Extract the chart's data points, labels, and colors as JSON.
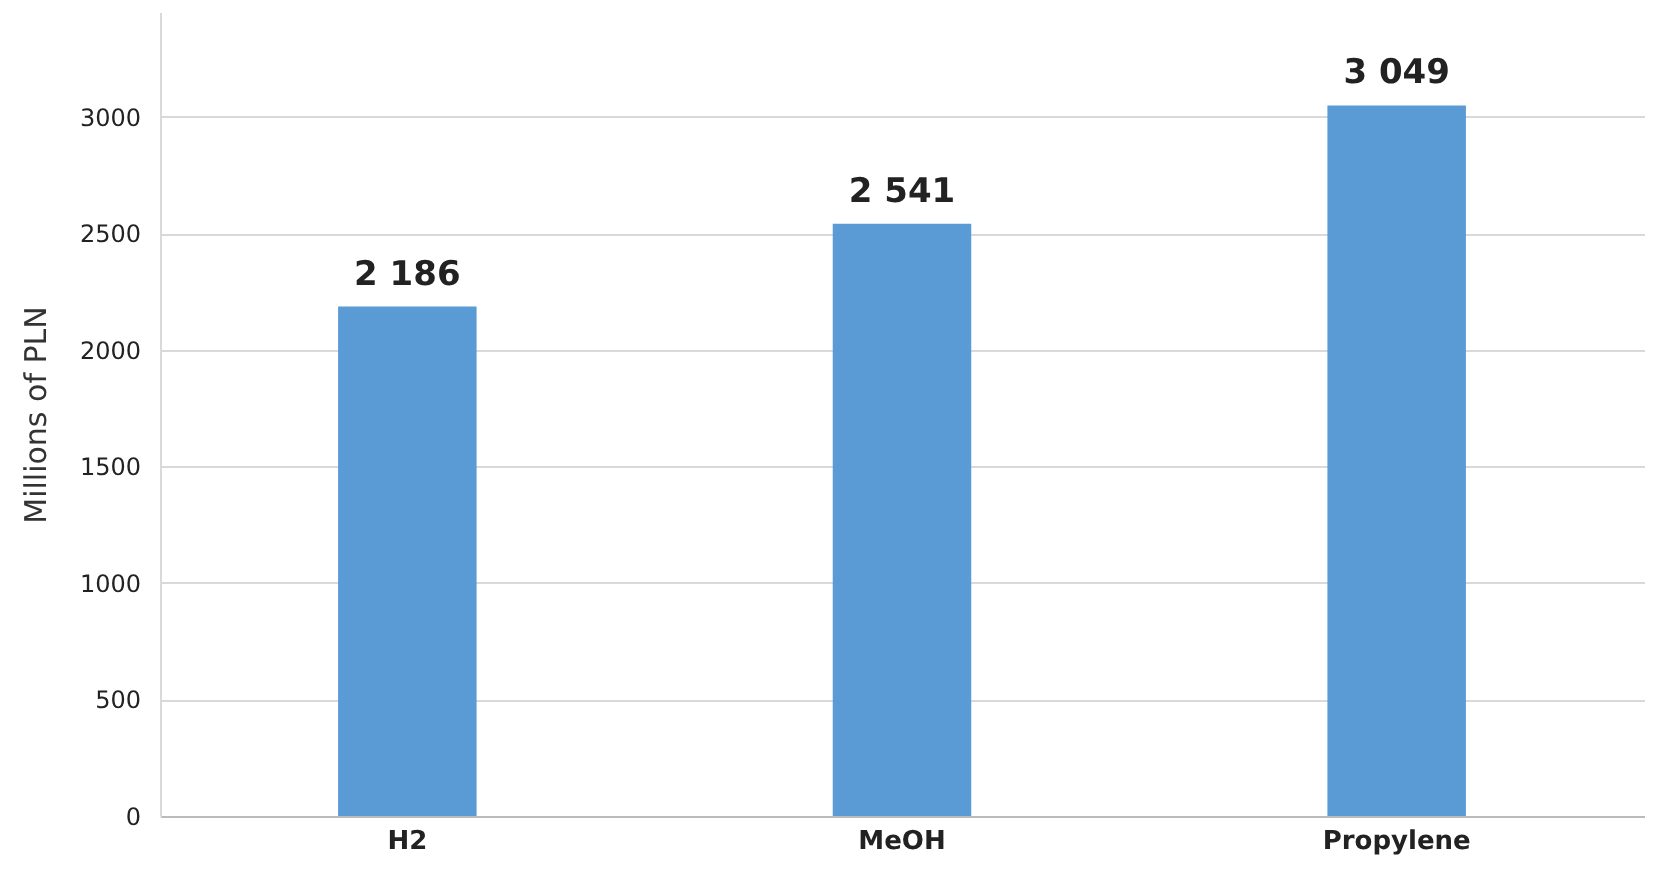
{
  "chart_data": {
    "type": "bar",
    "ylabel": "Millions of PLN",
    "categories": [
      "H2",
      "MeOH",
      "Propylene"
    ],
    "values": [
      2186,
      2541,
      3049
    ],
    "value_labels": [
      "2 186",
      "2 541",
      "3 049"
    ],
    "color": "#5b9bd5",
    "ylim": [
      0,
      3450
    ],
    "yticks": [
      0,
      500,
      1000,
      1500,
      2000,
      2500,
      3000
    ],
    "grid": "y"
  }
}
